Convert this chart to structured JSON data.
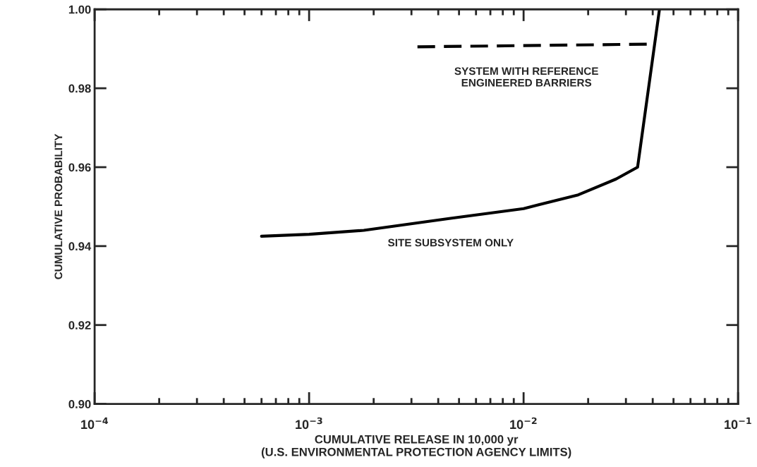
{
  "chart_data": {
    "type": "line",
    "xlabel": "CUMULATIVE RELEASE IN 10,000 yr\n(U.S. ENVIRONMENTAL PROTECTION AGENCY LIMITS)",
    "ylabel": "CUMULATIVE PROBABILITY",
    "log": "x",
    "xlim": [
      0.0001,
      0.1
    ],
    "xticks": [
      {
        "value": 0.0001,
        "label": "10$^{−4}$"
      },
      {
        "value": 0.001,
        "label": "10$^{−3}$"
      },
      {
        "value": 0.01,
        "label": "10$^{−2}$"
      },
      {
        "value": 0.1,
        "label": "10$^{−1}$"
      }
    ],
    "ylim": [
      0.9,
      1.0
    ],
    "yticks": [
      {
        "value": 0.9,
        "label": "0.90"
      },
      {
        "value": 0.92,
        "label": "0.92"
      },
      {
        "value": 0.94,
        "label": "0.94"
      },
      {
        "value": 0.96,
        "label": "0.96"
      },
      {
        "value": 0.98,
        "label": "0.98"
      },
      {
        "value": 1.0,
        "label": "1.00"
      }
    ],
    "grid": false,
    "legend": false,
    "marker": "none",
    "series": [
      {
        "name": "SITE SUBSYSTEM ONLY",
        "color": "#000000",
        "line_style": "solid",
        "x": [
          0.0006,
          0.001,
          0.0018,
          0.0045,
          0.01,
          0.018,
          0.027,
          0.034,
          0.043
        ],
        "values": [
          0.9425,
          0.943,
          0.944,
          0.947,
          0.9495,
          0.953,
          0.957,
          0.96,
          1.0
        ]
      },
      {
        "name": "SYSTEM WITH REFERENCE\nENGINEERED BARRIERS",
        "color": "#000000",
        "line_style": "dashed",
        "x": [
          0.0032,
          0.041
        ],
        "values": [
          0.9905,
          0.9912
        ]
      }
    ]
  }
}
